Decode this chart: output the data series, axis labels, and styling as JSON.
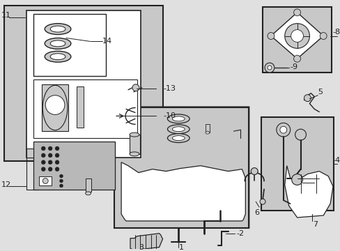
{
  "bg_color": "#e0e0e0",
  "white": "#ffffff",
  "light_gray": "#c8c8c8",
  "line_color": "#222222",
  "fig_width": 4.89,
  "fig_height": 3.6,
  "dpi": 100
}
